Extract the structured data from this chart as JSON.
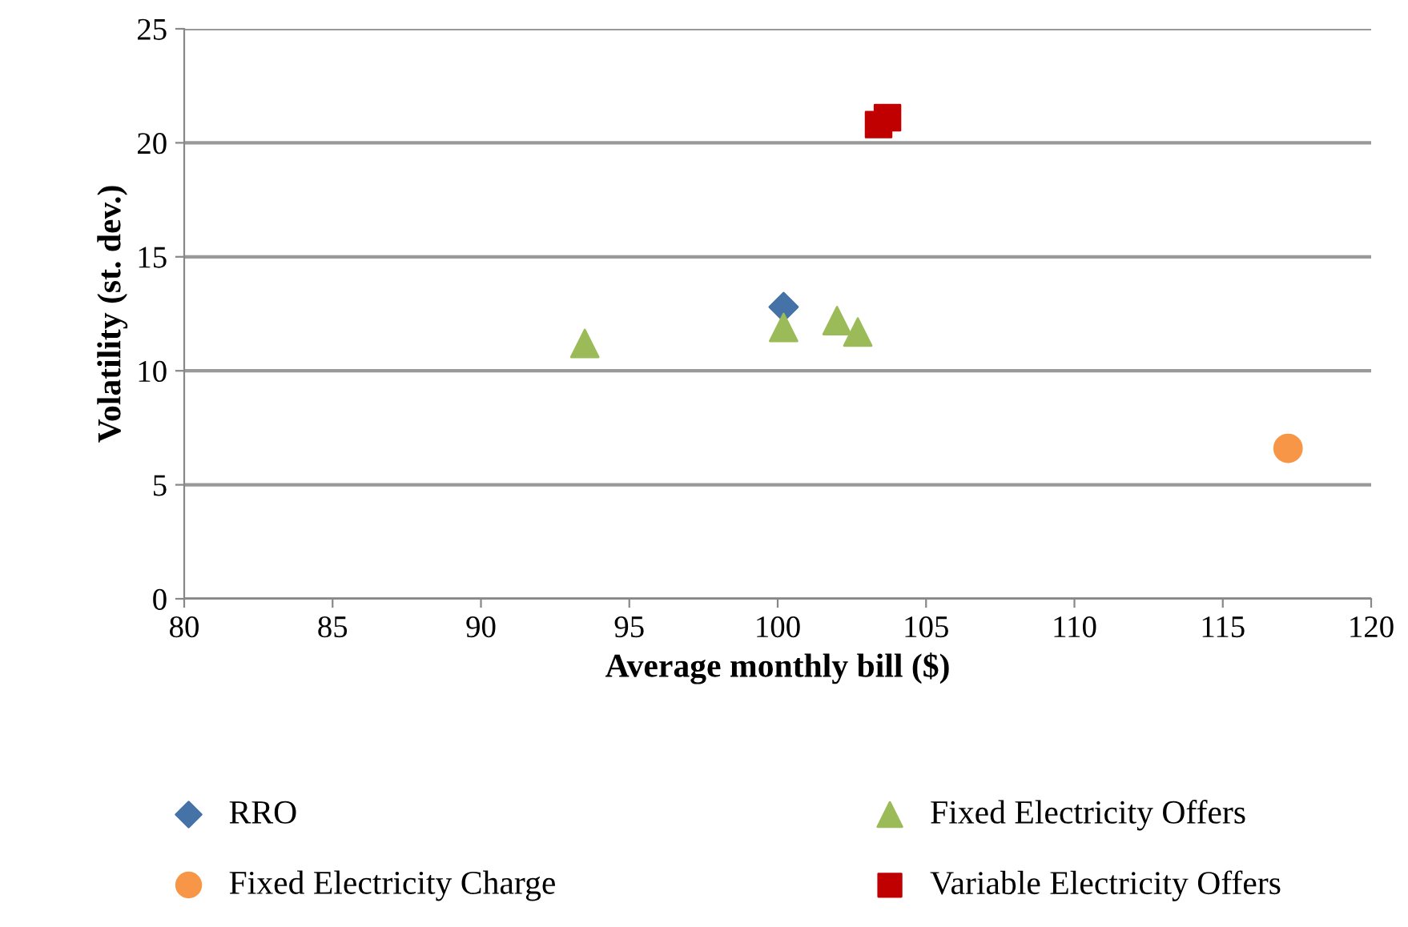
{
  "chart_data": {
    "type": "scatter",
    "xlabel": "Average monthly bill ($)",
    "ylabel": "Volatility (st. dev.)",
    "xlim": [
      80,
      120
    ],
    "xticks": [
      80,
      85,
      90,
      95,
      100,
      105,
      110,
      115,
      120
    ],
    "ylim": [
      0,
      25
    ],
    "yticks": [
      0,
      5,
      10,
      15,
      20,
      25
    ],
    "grid": "y",
    "legend": "bottom",
    "series": [
      {
        "name": "RRO",
        "color": "#4572a7",
        "marker": "diamond",
        "x": [
          100.2
        ],
        "values": [
          12.8
        ]
      },
      {
        "name": "Fixed Electricity Offers",
        "color": "#9bbb59",
        "marker": "triangle",
        "x": [
          93.5,
          100.2,
          102.0,
          102.7
        ],
        "values": [
          11.2,
          11.9,
          12.2,
          11.7
        ]
      },
      {
        "name": "Fixed Electricity Charge",
        "color": "#f79646",
        "marker": "circle",
        "x": [
          117.2
        ],
        "values": [
          6.6
        ]
      },
      {
        "name": "Variable Electricity Offers",
        "color": "#c00000",
        "marker": "square",
        "x": [
          103.4,
          103.7
        ],
        "values": [
          20.8,
          21.1
        ]
      }
    ]
  }
}
